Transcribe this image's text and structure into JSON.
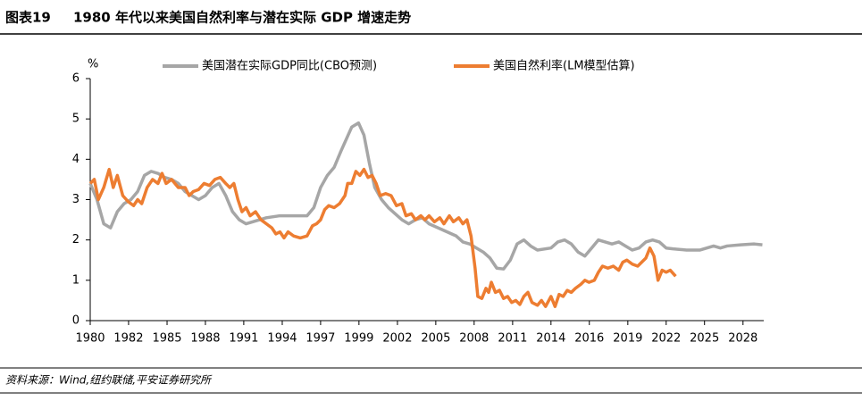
{
  "chart_data": {
    "type": "line",
    "label": "图表19",
    "title": "1980 年代以来美国自然利率与潜在实际 GDP 增速走势",
    "y_label": "%",
    "source": "资料来源：Wind,纽约联储,平安证券研究所",
    "xlim": [
      1980,
      2029.7
    ],
    "ylim": [
      0,
      6
    ],
    "yticks": [
      0,
      1,
      2,
      3,
      4,
      5,
      6
    ],
    "xticks": [
      {
        "value": 1980,
        "label": "1980"
      },
      {
        "value": 1982.83,
        "label": "1982"
      },
      {
        "value": 1985.67,
        "label": "1985"
      },
      {
        "value": 1988.5,
        "label": "1988"
      },
      {
        "value": 1991.33,
        "label": "1991"
      },
      {
        "value": 1994.17,
        "label": "1994"
      },
      {
        "value": 1997,
        "label": "1997"
      },
      {
        "value": 1999.83,
        "label": "1999"
      },
      {
        "value": 2002.67,
        "label": "2002"
      },
      {
        "value": 2005.5,
        "label": "2005"
      },
      {
        "value": 2008.33,
        "label": "2008"
      },
      {
        "value": 2011.17,
        "label": "2011"
      },
      {
        "value": 2014,
        "label": "2014"
      },
      {
        "value": 2016.83,
        "label": "2016"
      },
      {
        "value": 2019.67,
        "label": "2019"
      },
      {
        "value": 2022.5,
        "label": "2022"
      },
      {
        "value": 2025.33,
        "label": "2025"
      },
      {
        "value": 2028.17,
        "label": "2028"
      }
    ],
    "grid": false,
    "series": [
      {
        "name": "美国潜在实际GDP同比(CBO预测)",
        "color": "#a6a6a6",
        "x": [
          1980,
          1980.5,
          1981,
          1981.5,
          1982,
          1982.5,
          1983,
          1983.5,
          1984,
          1984.5,
          1985,
          1985.5,
          1986,
          1986.5,
          1987,
          1987.5,
          1988,
          1988.5,
          1989,
          1989.5,
          1990,
          1990.5,
          1991,
          1991.5,
          1992,
          1993,
          1994,
          1995,
          1996,
          1996.5,
          1997,
          1997.5,
          1998,
          1998.5,
          1999.3,
          1999.8,
          2000.2,
          2000.6,
          2001,
          2001.5,
          2002,
          2003,
          2003.5,
          2004,
          2004.5,
          2005,
          2006,
          2007,
          2007.5,
          2008,
          2008.5,
          2009,
          2009.5,
          2010,
          2010.5,
          2011,
          2011.5,
          2012,
          2012.5,
          2013,
          2014,
          2014.5,
          2015,
          2015.5,
          2016,
          2016.5,
          2017,
          2017.5,
          2018,
          2018.5,
          2019,
          2019.5,
          2020,
          2020.5,
          2021,
          2021.5,
          2022,
          2022.5,
          2023,
          2024,
          2025,
          2025.5,
          2026,
          2026.5,
          2027,
          2028,
          2029,
          2029.6
        ],
        "values": [
          3.4,
          3.0,
          2.4,
          2.3,
          2.7,
          2.9,
          3.0,
          3.2,
          3.6,
          3.7,
          3.65,
          3.55,
          3.5,
          3.4,
          3.2,
          3.1,
          3.0,
          3.1,
          3.3,
          3.4,
          3.1,
          2.7,
          2.5,
          2.4,
          2.45,
          2.55,
          2.6,
          2.6,
          2.6,
          2.8,
          3.3,
          3.6,
          3.8,
          4.2,
          4.8,
          4.9,
          4.6,
          3.9,
          3.3,
          3.0,
          2.8,
          2.5,
          2.4,
          2.5,
          2.55,
          2.4,
          2.25,
          2.1,
          1.95,
          1.9,
          1.8,
          1.7,
          1.55,
          1.3,
          1.28,
          1.5,
          1.9,
          2.0,
          1.85,
          1.75,
          1.8,
          1.95,
          2.0,
          1.9,
          1.7,
          1.6,
          1.8,
          2.0,
          1.95,
          1.9,
          1.95,
          1.85,
          1.75,
          1.8,
          1.95,
          2.0,
          1.95,
          1.8,
          1.78,
          1.75,
          1.75,
          1.8,
          1.85,
          1.8,
          1.85,
          1.88,
          1.9,
          1.88
        ]
      },
      {
        "name": "美国自然利率(LM模型估算)",
        "color": "#ed7d31",
        "x": [
          1980,
          1980.3,
          1980.6,
          1981,
          1981.4,
          1981.7,
          1982,
          1982.4,
          1982.8,
          1983.2,
          1983.5,
          1983.8,
          1984.2,
          1984.6,
          1985,
          1985.3,
          1985.6,
          1986,
          1986.5,
          1987,
          1987.3,
          1987.6,
          1988,
          1988.4,
          1988.8,
          1989.2,
          1989.6,
          1990,
          1990.3,
          1990.6,
          1990.9,
          1991.2,
          1991.5,
          1991.8,
          1992.2,
          1992.6,
          1993,
          1993.4,
          1993.7,
          1994,
          1994.3,
          1994.6,
          1995,
          1995.5,
          1996,
          1996.4,
          1996.7,
          1997,
          1997.3,
          1997.6,
          1998,
          1998.4,
          1998.8,
          1999,
          1999.3,
          1999.6,
          1999.9,
          2000.2,
          2000.5,
          2000.8,
          2001.1,
          2001.4,
          2001.8,
          2002.2,
          2002.6,
          2003,
          2003.3,
          2003.7,
          2004,
          2004.4,
          2004.7,
          2005,
          2005.4,
          2005.8,
          2006.1,
          2006.5,
          2006.8,
          2007.2,
          2007.5,
          2007.8,
          2008.1,
          2008.4,
          2008.6,
          2008.9,
          2009.2,
          2009.4,
          2009.6,
          2009.9,
          2010.2,
          2010.5,
          2010.8,
          2011.1,
          2011.4,
          2011.7,
          2012,
          2012.3,
          2012.6,
          2013,
          2013.3,
          2013.6,
          2014,
          2014.3,
          2014.6,
          2014.9,
          2015.2,
          2015.5,
          2015.8,
          2016.2,
          2016.5,
          2016.8,
          2017.2,
          2017.5,
          2017.8,
          2018.2,
          2018.6,
          2019,
          2019.3,
          2019.6,
          2020,
          2020.4,
          2020.7,
          2021,
          2021.3,
          2021.6,
          2021.9,
          2022.2,
          2022.5,
          2022.8,
          2023.2
        ],
        "values": [
          3.4,
          3.5,
          3.0,
          3.3,
          3.75,
          3.3,
          3.6,
          3.1,
          2.95,
          2.85,
          3.0,
          2.9,
          3.3,
          3.5,
          3.4,
          3.65,
          3.4,
          3.5,
          3.3,
          3.3,
          3.1,
          3.2,
          3.25,
          3.4,
          3.35,
          3.5,
          3.55,
          3.4,
          3.3,
          3.4,
          3.0,
          2.7,
          2.8,
          2.6,
          2.7,
          2.5,
          2.4,
          2.3,
          2.15,
          2.2,
          2.05,
          2.2,
          2.1,
          2.05,
          2.1,
          2.35,
          2.4,
          2.5,
          2.75,
          2.85,
          2.8,
          2.9,
          3.1,
          3.4,
          3.4,
          3.7,
          3.6,
          3.75,
          3.55,
          3.6,
          3.4,
          3.1,
          3.15,
          3.1,
          2.85,
          2.9,
          2.6,
          2.65,
          2.5,
          2.6,
          2.5,
          2.6,
          2.45,
          2.55,
          2.4,
          2.6,
          2.45,
          2.55,
          2.4,
          2.5,
          2.1,
          1.3,
          0.6,
          0.55,
          0.8,
          0.7,
          0.95,
          0.7,
          0.75,
          0.55,
          0.6,
          0.45,
          0.5,
          0.4,
          0.6,
          0.7,
          0.45,
          0.38,
          0.5,
          0.35,
          0.6,
          0.35,
          0.65,
          0.6,
          0.75,
          0.7,
          0.8,
          0.9,
          1.0,
          0.95,
          1.0,
          1.2,
          1.35,
          1.3,
          1.35,
          1.25,
          1.45,
          1.5,
          1.4,
          1.35,
          1.45,
          1.55,
          1.8,
          1.6,
          1.0,
          1.25,
          1.2,
          1.25,
          1.1
        ]
      }
    ]
  }
}
